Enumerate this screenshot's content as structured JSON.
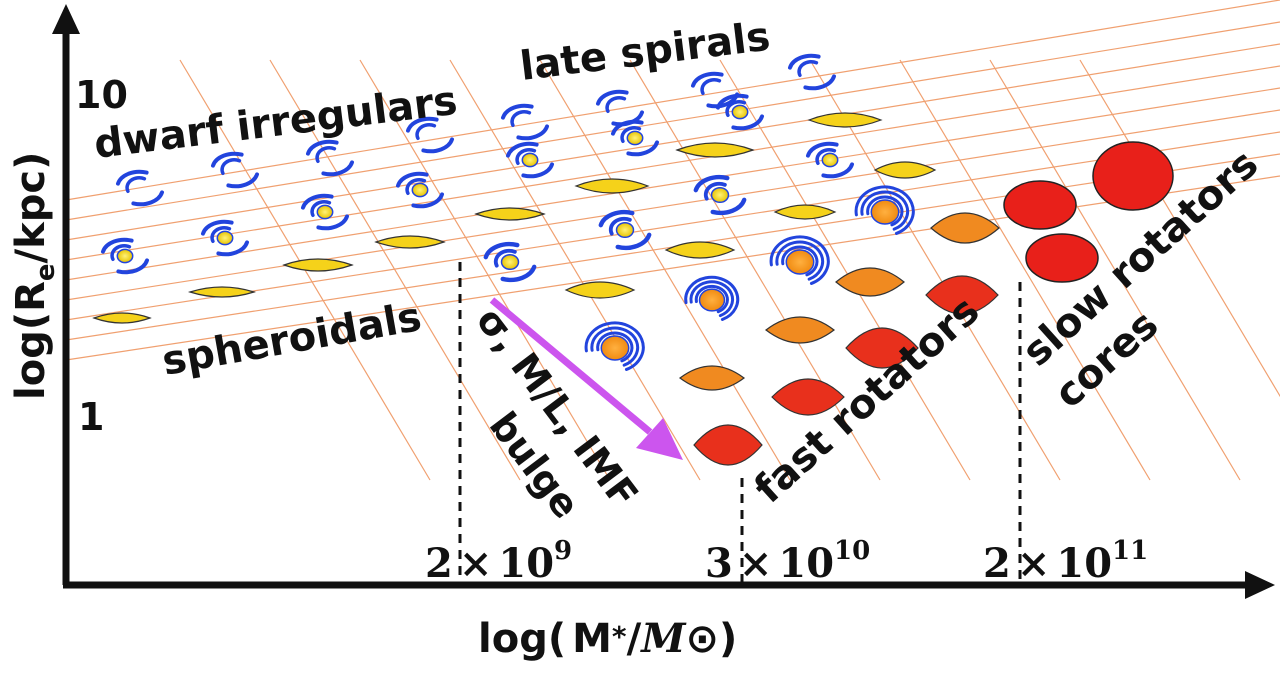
{
  "diagram": {
    "y_axis": {
      "label_prefix": "log(R",
      "label_sub": "e",
      "label_suffix": "/kpc)",
      "ticks": [
        "10",
        "1"
      ]
    },
    "x_axis": {
      "label_prefix": "log(",
      "label_mid": "M",
      "label_star": "*",
      "label_slash": "/",
      "label_M": "M",
      "label_sun": "⊙",
      "label_suffix": ")",
      "thresholds": [
        {
          "coef": "2",
          "times": "×",
          "base": "10",
          "exp": "9"
        },
        {
          "coef": "3",
          "times": "×",
          "base": "10",
          "exp": "10"
        },
        {
          "coef": "2",
          "times": "×",
          "base": "10",
          "exp": "11"
        }
      ]
    },
    "region_labels": {
      "late_spirals": "late spirals",
      "dwarf_irregulars": "dwarf irregulars",
      "spheroidals": "spheroidals",
      "trend": "σ, M/L, IMF",
      "bulge": "bulge",
      "fast_rotators": "fast rotators",
      "slow_rotators": "slow rotators",
      "cores": "cores"
    },
    "colors": {
      "grid": "#f0a070",
      "spiral": "#2244dd",
      "arrow": "#cc55ee",
      "spheroidal": "#f5d21a",
      "fast_light": "#f08a20",
      "fast_dark": "#e8301c",
      "slow": "#e8201a"
    },
    "galaxy_types": [
      "spiral-icon",
      "lens-icon",
      "ellipse-icon"
    ]
  }
}
